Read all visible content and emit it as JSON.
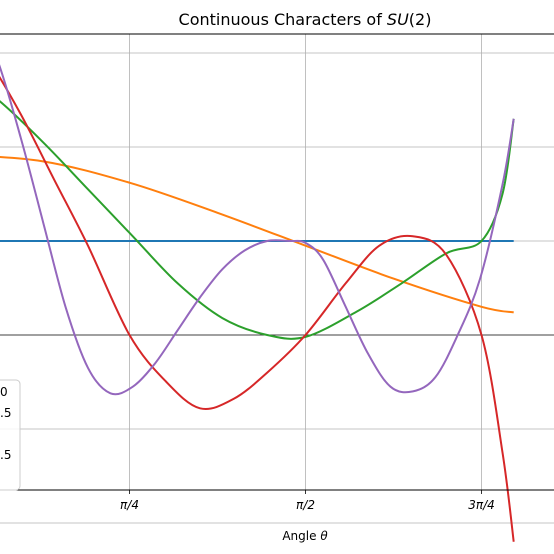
{
  "chart_data": {
    "type": "line",
    "title": "Continuous Characters of SU(2)",
    "title_parts": {
      "pre": "Continuous Characters of ",
      "italic": "SU",
      "post": "(2)"
    },
    "xlabel": "Angle θ",
    "xlabel_parts": {
      "pre": "Angle ",
      "italic": "θ"
    },
    "grid": true,
    "legend_placement": "lower-left",
    "x_ticks": [
      {
        "value": 0.7853981634,
        "label": "π/4"
      },
      {
        "value": 1.5707963268,
        "label": "π/2"
      },
      {
        "value": 2.3561944902,
        "label": "3π/4"
      }
    ],
    "legend_visible_fragments": [
      "0",
      ".5",
      "",
      ".5",
      ""
    ],
    "series": [
      {
        "color": "#1f77b4",
        "x": [
          0,
          2.5
        ],
        "y": [
          1.0,
          1.0
        ]
      },
      {
        "color": "#ff7f0e",
        "x": [
          0,
          0.3927,
          0.7854,
          1.1781,
          1.5708,
          1.9635,
          2.3562,
          2.5
        ],
        "y": [
          1.92,
          1.85,
          1.62,
          1.3,
          0.95,
          0.6,
          0.3,
          0.24
        ]
      },
      {
        "color": "#2ca02c",
        "x": [
          0,
          0.2,
          0.4,
          0.6,
          0.8,
          1.0,
          1.2,
          1.4,
          1.5708,
          1.8,
          2.0,
          2.2,
          2.3562,
          2.45,
          2.5
        ],
        "y": [
          2.85,
          2.5,
          2.05,
          1.55,
          1.05,
          0.55,
          0.18,
          0.0,
          -0.02,
          0.25,
          0.55,
          0.87,
          1.0,
          1.5,
          2.3
        ]
      },
      {
        "color": "#d62728",
        "x": [
          0,
          0.15,
          0.3,
          0.45,
          0.6,
          0.7854,
          0.95,
          1.1,
          1.25,
          1.4,
          1.5708,
          1.75,
          1.9,
          2.05,
          2.2,
          2.3562,
          2.45,
          2.5
        ],
        "y": [
          3.4,
          2.95,
          2.35,
          1.65,
          0.95,
          0.0,
          -0.5,
          -0.78,
          -0.68,
          -0.4,
          0.0,
          0.55,
          0.95,
          1.05,
          0.85,
          0.0,
          -1.25,
          -2.2
        ]
      },
      {
        "color": "#9467bd",
        "x": [
          0,
          0.1,
          0.2,
          0.3,
          0.4,
          0.5,
          0.6,
          0.7,
          0.8,
          0.9,
          1.0,
          1.1,
          1.2,
          1.3,
          1.4,
          1.5,
          1.5708,
          1.65,
          1.75,
          1.85,
          1.95,
          2.05,
          2.15,
          2.25,
          2.35,
          2.45,
          2.5
        ],
        "y": [
          3.9,
          3.45,
          2.9,
          2.1,
          1.2,
          0.3,
          -0.35,
          -0.62,
          -0.55,
          -0.3,
          0.05,
          0.4,
          0.7,
          0.9,
          1.0,
          1.0,
          0.98,
          0.8,
          0.3,
          -0.2,
          -0.55,
          -0.6,
          -0.45,
          0.0,
          0.6,
          1.6,
          2.3
        ]
      }
    ]
  }
}
